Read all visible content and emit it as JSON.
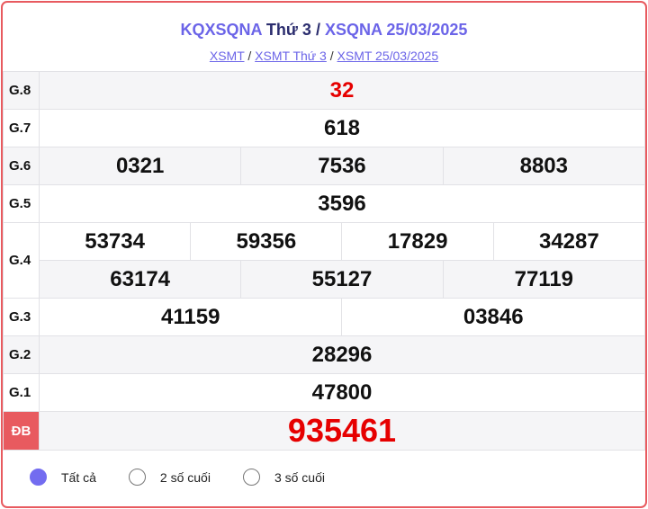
{
  "header": {
    "title_a": "KQXSQNA",
    "title_b": "Thứ 3",
    "title_sep": "/",
    "title_c": "XSQNA 25/03/2025"
  },
  "breadcrumb": [
    {
      "label": "XSMT"
    },
    {
      "label": "XSMT Thứ 3"
    },
    {
      "label": "XSMT 25/03/2025"
    }
  ],
  "prizes": {
    "g8": {
      "label": "G.8",
      "values": [
        "32"
      ]
    },
    "g7": {
      "label": "G.7",
      "values": [
        "618"
      ]
    },
    "g6": {
      "label": "G.6",
      "values": [
        "0321",
        "7536",
        "8803"
      ]
    },
    "g5": {
      "label": "G.5",
      "values": [
        "3596"
      ]
    },
    "g4": {
      "label": "G.4",
      "values": [
        "53734",
        "59356",
        "17829",
        "34287",
        "63174",
        "55127",
        "77119"
      ]
    },
    "g3": {
      "label": "G.3",
      "values": [
        "41159",
        "03846"
      ]
    },
    "g2": {
      "label": "G.2",
      "values": [
        "28296"
      ]
    },
    "g1": {
      "label": "G.1",
      "values": [
        "47800"
      ]
    },
    "db": {
      "label": "ĐB",
      "values": [
        "935461"
      ]
    }
  },
  "filters": [
    {
      "label": "Tất cả",
      "selected": true
    },
    {
      "label": "2 số cuối",
      "selected": false
    },
    {
      "label": "3 số cuối",
      "selected": false
    }
  ],
  "colors": {
    "accent": "#6b64e8",
    "special": "#e60000",
    "border": "#e85a5f"
  }
}
